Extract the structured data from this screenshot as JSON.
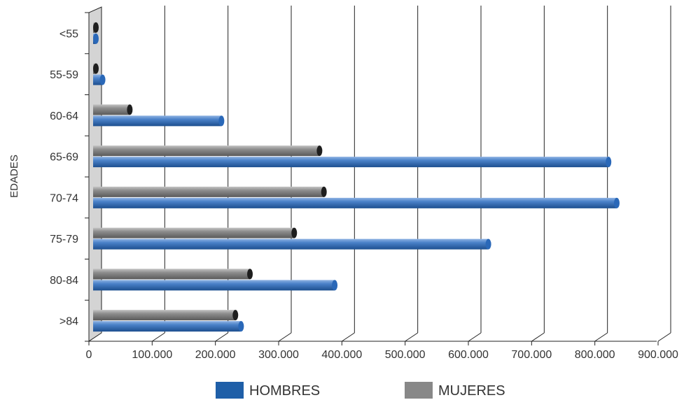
{
  "chart_data": {
    "type": "bar",
    "orientation": "horizontal",
    "style": "3d-cylinder",
    "ylabel": "EDADES",
    "xlabel": "",
    "categories": [
      "<55",
      "55-59",
      "60-64",
      "65-69",
      "70-74",
      "75-79",
      "80-84",
      ">84"
    ],
    "x_ticks": [
      "0",
      "100.000",
      "200.000",
      "300.000",
      "400.000",
      "500.000",
      "600.000",
      "700.000",
      "800.000",
      "900.000"
    ],
    "xlim": [
      0,
      900000
    ],
    "grid": true,
    "legend_position": "bottom",
    "series": [
      {
        "name": "HOMBRES",
        "color": "#1f5fa8",
        "values": [
          3000,
          15000,
          203000,
          815000,
          828000,
          625000,
          382000,
          234000
        ]
      },
      {
        "name": "MUJERES",
        "color": "#888888",
        "values": [
          2000,
          2000,
          58000,
          358000,
          365000,
          318000,
          248000,
          225000
        ]
      }
    ]
  }
}
